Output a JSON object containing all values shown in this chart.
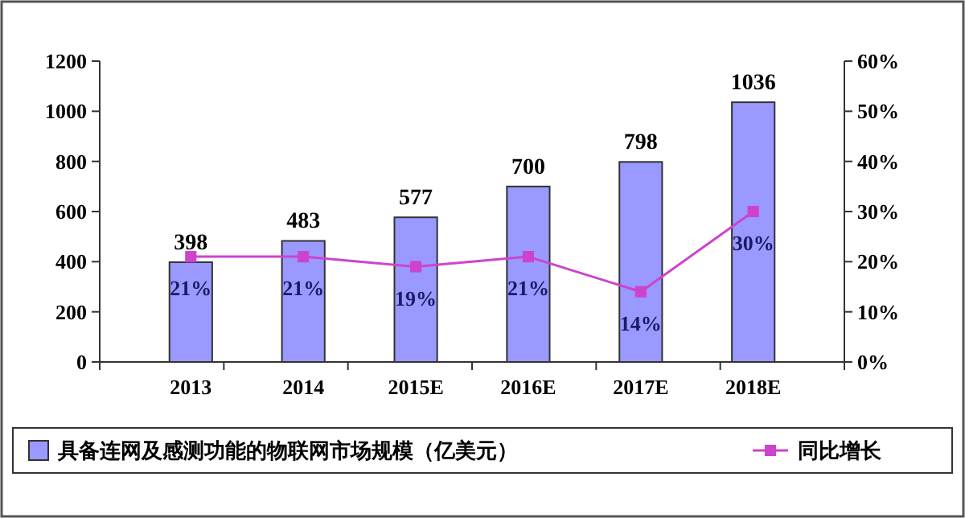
{
  "chart_data": {
    "type": "bar",
    "categories": [
      "2013",
      "2014",
      "2015E",
      "2016E",
      "2017E",
      "2018E"
    ],
    "series": [
      {
        "name": "具备连网及感测功能的物联网市场规模（亿美元）",
        "color": "#9999ff",
        "values": [
          398,
          483,
          577,
          700,
          798,
          1036
        ]
      },
      {
        "name": "同比增长",
        "type": "line",
        "axis": "y2",
        "color": "#cc44cc",
        "marker": "square",
        "values": [
          21,
          21,
          19,
          21,
          14,
          30
        ],
        "value_labels": [
          "21%",
          "21%",
          "19%",
          "21%",
          "14%",
          "30%"
        ]
      }
    ],
    "ylim": [
      0,
      1200
    ],
    "yticks": [
      0,
      200,
      400,
      600,
      800,
      1000,
      1200
    ],
    "y2lim": [
      0,
      60
    ],
    "y2ticks": [
      {
        "value": 0,
        "label": "0%"
      },
      {
        "value": 10,
        "label": "10%"
      },
      {
        "value": 20,
        "label": "20%"
      },
      {
        "value": 30,
        "label": "30%"
      },
      {
        "value": 40,
        "label": "40%"
      },
      {
        "value": 50,
        "label": "50%"
      },
      {
        "value": 60,
        "label": "60%"
      }
    ],
    "data_labels": true,
    "legend": "bottom",
    "grid": false
  }
}
